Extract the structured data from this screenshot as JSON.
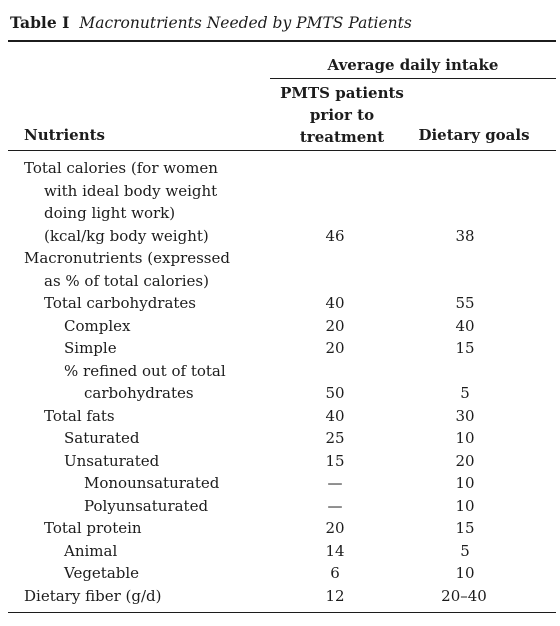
{
  "table": {
    "label": "Table I",
    "caption": "Macronutrients Needed by PMTS Patients",
    "span_header": "Average daily intake",
    "stub_header": "Nutrients",
    "col1_header_lines": [
      "PMTS patients",
      "prior to",
      "treatment"
    ],
    "col2_header": "Dietary goals",
    "rows": [
      {
        "text": "Total calories (for women",
        "indent": 0,
        "v1": "",
        "v2": ""
      },
      {
        "text": "with ideal body weight",
        "indent": 1,
        "v1": "",
        "v2": ""
      },
      {
        "text": "doing light work)",
        "indent": 1,
        "v1": "",
        "v2": ""
      },
      {
        "text": "(kcal/kg body weight)",
        "indent": 1,
        "v1": "46",
        "v2": "38"
      },
      {
        "text": "Macronutrients (expressed",
        "indent": 0,
        "v1": "",
        "v2": ""
      },
      {
        "text": "as % of total calories)",
        "indent": 1,
        "v1": "",
        "v2": ""
      },
      {
        "text": "Total carbohydrates",
        "indent": 1,
        "v1": "40",
        "v2": "55"
      },
      {
        "text": "Complex",
        "indent": 2,
        "v1": "20",
        "v2": "40"
      },
      {
        "text": "Simple",
        "indent": 2,
        "v1": "20",
        "v2": "15"
      },
      {
        "text": "% refined out of total",
        "indent": 2,
        "v1": "",
        "v2": ""
      },
      {
        "text": "carbohydrates",
        "indent": 3,
        "v1": "50",
        "v2": "5"
      },
      {
        "text": "Total fats",
        "indent": 1,
        "v1": "40",
        "v2": "30"
      },
      {
        "text": "Saturated",
        "indent": 2,
        "v1": "25",
        "v2": "10"
      },
      {
        "text": "Unsaturated",
        "indent": 2,
        "v1": "15",
        "v2": "20"
      },
      {
        "text": "Monounsaturated",
        "indent": 3,
        "v1": "—",
        "v2": "10"
      },
      {
        "text": "Polyunsaturated",
        "indent": 3,
        "v1": "—",
        "v2": "10"
      },
      {
        "text": "Total protein",
        "indent": 1,
        "v1": "20",
        "v2": "15"
      },
      {
        "text": "Animal",
        "indent": 2,
        "v1": "14",
        "v2": "5"
      },
      {
        "text": "Vegetable",
        "indent": 2,
        "v1": "6",
        "v2": "10"
      },
      {
        "text": "Dietary fiber (g/d)",
        "indent": 0,
        "v1": "12",
        "v2": "20–40"
      }
    ]
  }
}
